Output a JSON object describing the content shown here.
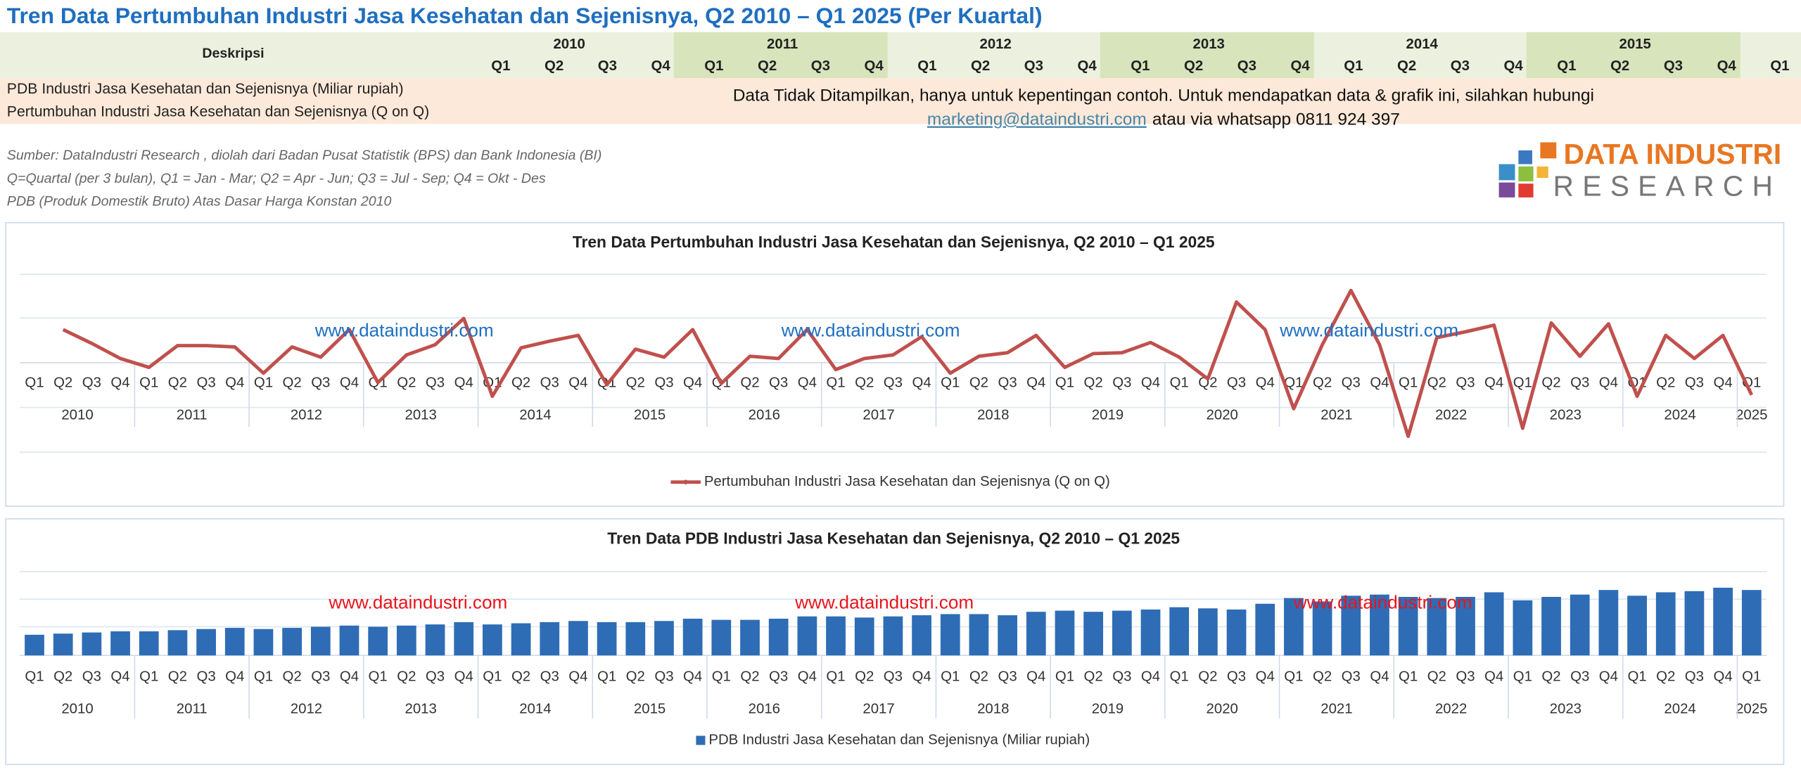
{
  "title": "Tren Data Pertumbuhan Industri Jasa Kesehatan dan Sejenisnya, Q2 2010 – Q1 2025 (Per Kuartal)",
  "table": {
    "header_label": "Deskripsi",
    "years": [
      "2010",
      "2011",
      "2012",
      "2013",
      "2014",
      "2015"
    ],
    "quarters": [
      "Q1",
      "Q2",
      "Q3",
      "Q4"
    ],
    "rows": [
      "PDB Industri Jasa Kesehatan dan Sejenisnya (Miliar rupiah)",
      "Pertumbuhan Industri Jasa Kesehatan dan Sejenisnya (Q on Q)"
    ],
    "notice": "Data Tidak Ditampilkan, hanya untuk kepentingan contoh. Untuk mendapatkan data & grafik  ini, silahkan hubungi",
    "email": "marketing@dataindustri.com",
    "contact": "atau via whatsapp 0811 924 397"
  },
  "notes": [
    "Sumber: DataIndustri Research , diolah dari Badan Pusat Statistik (BPS) dan Bank Indonesia (BI)",
    "Q=Quartal (per 3 bulan), Q1 = Jan - Mar; Q2 = Apr - Jun; Q3 = Jul - Sep; Q4 = Okt - Des",
    "PDB (Produk Domestik Bruto) Atas Dasar Harga Konstan 2010"
  ],
  "logo": {
    "line1": "DATA INDUSTRI",
    "line2": "RESEARCH"
  },
  "chart_data": [
    {
      "type": "line",
      "title": "Tren Data Pertumbuhan Industri Jasa Kesehatan dan Sejenisnya, Q2 2010 – Q1 2025",
      "watermark": "www.dataindustri.com",
      "watermark_color": "#1f6fc0",
      "years": [
        "2010",
        "2011",
        "2012",
        "2013",
        "2014",
        "2015",
        "2016",
        "2017",
        "2018",
        "2019",
        "2020",
        "2021",
        "2022",
        "2023",
        "2024",
        "2025"
      ],
      "categories": [
        "Q1",
        "Q2",
        "Q3",
        "Q4",
        "Q1",
        "Q2",
        "Q3",
        "Q4",
        "Q1",
        "Q2",
        "Q3",
        "Q4",
        "Q1",
        "Q2",
        "Q3",
        "Q4",
        "Q1",
        "Q2",
        "Q3",
        "Q4",
        "Q1",
        "Q2",
        "Q3",
        "Q4",
        "Q1",
        "Q2",
        "Q3",
        "Q4",
        "Q1",
        "Q2",
        "Q3",
        "Q4",
        "Q1",
        "Q2",
        "Q3",
        "Q4",
        "Q1",
        "Q2",
        "Q3",
        "Q4",
        "Q1",
        "Q2",
        "Q3",
        "Q4",
        "Q1",
        "Q2",
        "Q3",
        "Q4",
        "Q1",
        "Q2",
        "Q3",
        "Q4",
        "Q1",
        "Q2",
        "Q3",
        "Q4",
        "Q1",
        "Q2",
        "Q3",
        "Q4",
        "Q1"
      ],
      "series": [
        {
          "name": "Pertumbuhan Industri Jasa Kesehatan dan Sejenisnya (Q on Q)",
          "color": "#c0504d",
          "values": [
            null,
            0.75,
            0.44,
            0.1,
            -0.1,
            0.39,
            0.39,
            0.36,
            -0.23,
            0.36,
            0.13,
            0.75,
            -0.44,
            0.18,
            0.41,
            1.0,
            -0.75,
            0.34,
            0.49,
            0.62,
            -0.49,
            0.31,
            0.13,
            0.75,
            -0.46,
            0.15,
            0.1,
            0.75,
            -0.15,
            0.1,
            0.18,
            0.59,
            -0.23,
            0.15,
            0.23,
            0.62,
            -0.1,
            0.21,
            0.23,
            0.46,
            0.13,
            -0.36,
            1.37,
            0.75,
            -1.03,
            0.41,
            1.63,
            0.41,
            -1.65,
            0.57,
            0.7,
            0.85,
            -1.47,
            0.9,
            0.15,
            0.88,
            -0.75,
            0.62,
            0.1,
            0.62,
            -0.72
          ]
        }
      ],
      "ylim": [
        -2.5,
        3
      ]
    },
    {
      "type": "bar",
      "title": "Tren Data PDB Industri Jasa Kesehatan dan Sejenisnya, Q2 2010 – Q1 2025",
      "watermark": "www.dataindustri.com",
      "watermark_color": "#e8141c",
      "years": [
        "2010",
        "2011",
        "2012",
        "2013",
        "2014",
        "2015",
        "2016",
        "2017",
        "2018",
        "2019",
        "2020",
        "2021",
        "2022",
        "2023",
        "2024",
        "2025"
      ],
      "categories": [
        "Q1",
        "Q2",
        "Q3",
        "Q4",
        "Q1",
        "Q2",
        "Q3",
        "Q4",
        "Q1",
        "Q2",
        "Q3",
        "Q4",
        "Q1",
        "Q2",
        "Q3",
        "Q4",
        "Q1",
        "Q2",
        "Q3",
        "Q4",
        "Q1",
        "Q2",
        "Q3",
        "Q4",
        "Q1",
        "Q2",
        "Q3",
        "Q4",
        "Q1",
        "Q2",
        "Q3",
        "Q4",
        "Q1",
        "Q2",
        "Q3",
        "Q4",
        "Q1",
        "Q2",
        "Q3",
        "Q4",
        "Q1",
        "Q2",
        "Q3",
        "Q4",
        "Q1",
        "Q2",
        "Q3",
        "Q4",
        "Q1",
        "Q2",
        "Q3",
        "Q4",
        "Q1",
        "Q2",
        "Q3",
        "Q4",
        "Q1",
        "Q2",
        "Q3",
        "Q4",
        "Q1"
      ],
      "series": [
        {
          "name": "PDB Industri Jasa Kesehatan dan Sejenisnya (Miliar rupiah)",
          "color": "#2e6db5",
          "values": [
            18,
            19,
            20,
            21,
            21,
            22,
            23,
            24,
            23,
            24,
            25,
            26,
            25,
            26,
            27,
            29,
            27,
            28,
            29,
            30,
            29,
            29,
            30,
            32,
            31,
            31,
            32,
            34,
            34,
            33,
            34,
            35,
            36,
            36,
            35,
            38,
            39,
            38,
            39,
            40,
            42,
            41,
            40,
            45,
            50,
            47,
            52,
            53,
            51,
            50,
            51,
            55,
            48,
            51,
            53,
            57,
            52,
            55,
            56,
            59,
            57
          ]
        }
      ],
      "ylim": [
        0,
        73
      ]
    }
  ]
}
